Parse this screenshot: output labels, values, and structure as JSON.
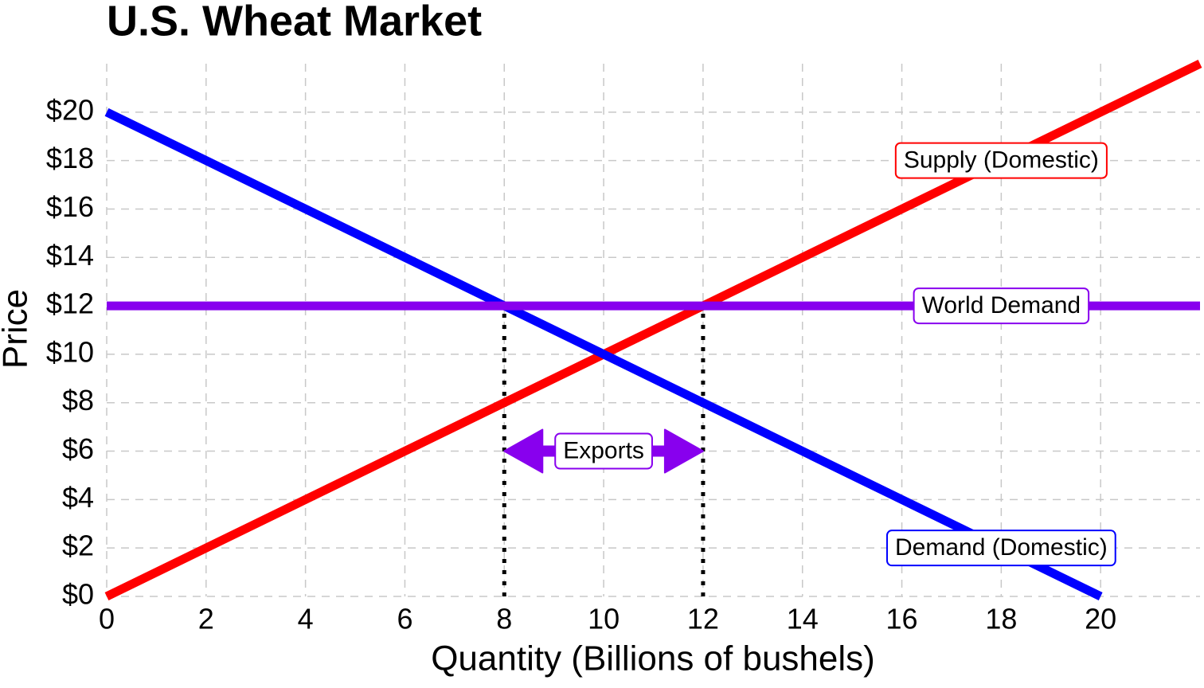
{
  "chart_data": {
    "type": "line",
    "title": "U.S. Wheat Market",
    "xlabel": "Quantity (Billions of bushels)",
    "ylabel": "Price",
    "xlim": [
      0,
      22
    ],
    "ylim": [
      0,
      22
    ],
    "xticks": [
      0,
      2,
      4,
      6,
      8,
      10,
      12,
      14,
      16,
      18,
      20
    ],
    "yticks": [
      {
        "value": 0,
        "label": "$0"
      },
      {
        "value": 2,
        "label": "$2"
      },
      {
        "value": 4,
        "label": "$4"
      },
      {
        "value": 6,
        "label": "$6"
      },
      {
        "value": 8,
        "label": "$8"
      },
      {
        "value": 10,
        "label": "$10"
      },
      {
        "value": 12,
        "label": "$12"
      },
      {
        "value": 14,
        "label": "$14"
      },
      {
        "value": 16,
        "label": "$16"
      },
      {
        "value": 18,
        "label": "$18"
      },
      {
        "value": 20,
        "label": "$20"
      }
    ],
    "grid": true,
    "series": [
      {
        "name": "Supply (Domestic)",
        "color": "#ff0000",
        "x": [
          0,
          22
        ],
        "values": [
          0,
          22
        ]
      },
      {
        "name": "Demand (Domestic)",
        "color": "#0000ff",
        "x": [
          0,
          20
        ],
        "values": [
          20,
          0
        ]
      },
      {
        "name": "World Demand",
        "color": "#8800ee",
        "x": [
          0,
          22
        ],
        "values": [
          12,
          12
        ]
      }
    ],
    "series_labels": [
      {
        "series": 0,
        "x": 18,
        "y": 18
      },
      {
        "series": 2,
        "x": 18,
        "y": 12
      },
      {
        "series": 1,
        "x": 18,
        "y": 2
      }
    ],
    "vlines": [
      {
        "x": 8,
        "y": 12
      },
      {
        "x": 12,
        "y": 12
      }
    ],
    "arrow": {
      "text": "Exports",
      "x": [
        8,
        12
      ],
      "y": 6,
      "color": "#8800ee"
    }
  }
}
